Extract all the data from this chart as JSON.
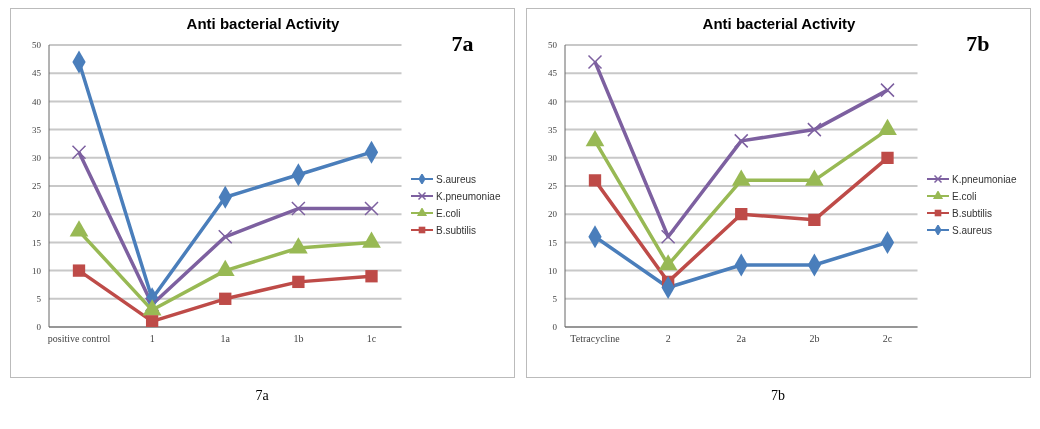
{
  "chart_data": [
    {
      "type": "line",
      "title": "Anti bacterial Activity",
      "annotations": [
        "7a",
        "7a"
      ],
      "categories": [
        "positive control",
        "1",
        "1a",
        "1b",
        "1c"
      ],
      "series": [
        {
          "name": "S.aureus",
          "color": "#4a7ebb",
          "marker": "diamond",
          "values": [
            47,
            5,
            23,
            27,
            31
          ]
        },
        {
          "name": "K.pneumoniae",
          "color": "#7d60a0",
          "marker": "cross",
          "values": [
            31,
            4,
            16,
            21,
            21
          ]
        },
        {
          "name": "E.coli",
          "color": "#98b954",
          "marker": "triangle",
          "values": [
            17,
            3,
            10,
            14,
            15
          ]
        },
        {
          "name": "B.subtilis",
          "color": "#be4b48",
          "marker": "square",
          "values": [
            10,
            1,
            5,
            8,
            9
          ]
        }
      ],
      "ylim": [
        0,
        50
      ],
      "yticks": [
        0,
        5,
        10,
        15,
        20,
        25,
        30,
        35,
        40,
        45,
        50
      ],
      "grid": "y",
      "legend": "right"
    },
    {
      "type": "line",
      "title": "Anti bacterial Activity",
      "annotations": [
        "7b",
        "7b"
      ],
      "categories": [
        "Tetracycline",
        "2",
        "2a",
        "2b",
        "2c"
      ],
      "series": [
        {
          "name": "K.pneumoniae",
          "color": "#7d60a0",
          "marker": "cross",
          "values": [
            47,
            16,
            33,
            35,
            42
          ]
        },
        {
          "name": "E.coli",
          "color": "#98b954",
          "marker": "triangle",
          "values": [
            33,
            11,
            26,
            26,
            35
          ]
        },
        {
          "name": "B.subtilis",
          "color": "#be4b48",
          "marker": "square",
          "values": [
            26,
            8,
            20,
            19,
            30
          ]
        },
        {
          "name": "S.aureus",
          "color": "#4a7ebb",
          "marker": "diamond",
          "values": [
            16,
            7,
            11,
            11,
            15
          ]
        }
      ],
      "ylim": [
        0,
        50
      ],
      "yticks": [
        0,
        5,
        10,
        15,
        20,
        25,
        30,
        35,
        40,
        45,
        50
      ],
      "grid": "y",
      "legend": "right"
    }
  ]
}
